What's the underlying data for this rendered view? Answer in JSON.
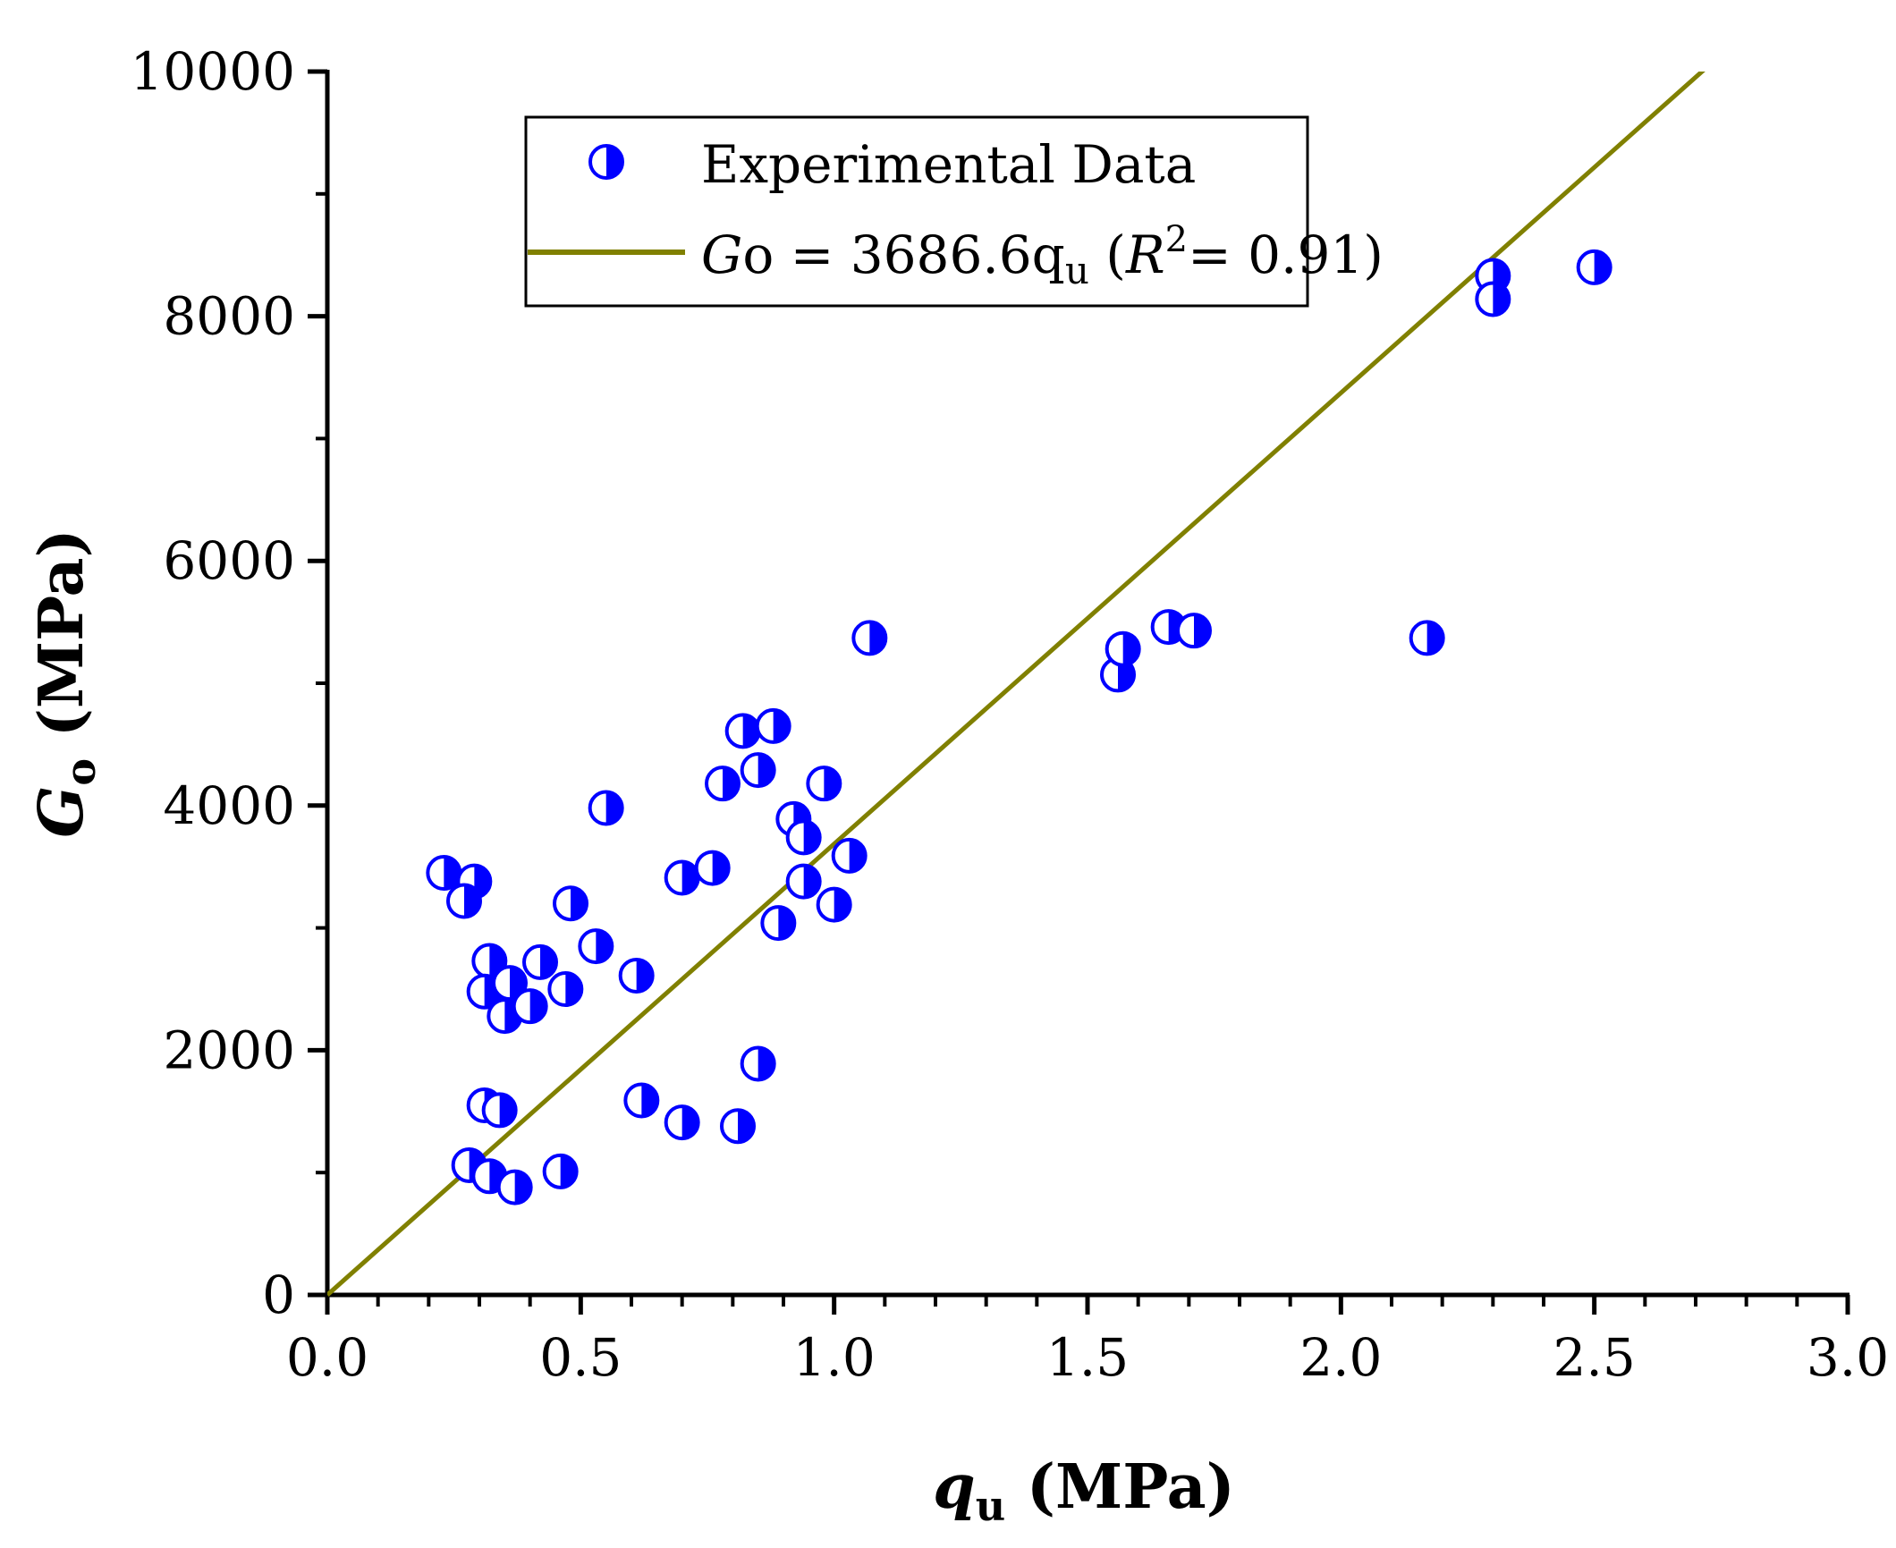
{
  "chart_data": {
    "type": "scatter",
    "title": "",
    "xlabel": {
      "main": "q",
      "sub": "u",
      "unit": "(MPa)"
    },
    "ylabel": {
      "main": "G",
      "sub": "o",
      "unit": "(MPa)"
    },
    "xlim": [
      0.0,
      3.0
    ],
    "ylim": [
      0,
      10000
    ],
    "x_ticks": [
      0.0,
      0.5,
      1.0,
      1.5,
      2.0,
      2.5,
      3.0
    ],
    "x_tick_labels": [
      "0.0",
      "0.5",
      "1.0",
      "1.5",
      "2.0",
      "2.5",
      "3.0"
    ],
    "y_ticks": [
      0,
      2000,
      4000,
      6000,
      8000,
      10000
    ],
    "y_tick_labels": [
      "0",
      "2000",
      "4000",
      "6000",
      "8000",
      "10000"
    ],
    "grid": false,
    "legend_position": "top-left",
    "series": [
      {
        "name": "Experimental Data",
        "kind": "scatter",
        "marker": "half-filled-circle",
        "color": "#0000ff",
        "points": [
          [
            0.23,
            3450
          ],
          [
            0.29,
            3380
          ],
          [
            0.27,
            3220
          ],
          [
            0.32,
            2730
          ],
          [
            0.31,
            2480
          ],
          [
            0.36,
            2550
          ],
          [
            0.35,
            2280
          ],
          [
            0.4,
            2360
          ],
          [
            0.42,
            2720
          ],
          [
            0.47,
            2500
          ],
          [
            0.48,
            3200
          ],
          [
            0.53,
            2850
          ],
          [
            0.55,
            3980
          ],
          [
            0.61,
            2610
          ],
          [
            0.62,
            1590
          ],
          [
            0.7,
            3410
          ],
          [
            0.7,
            1410
          ],
          [
            0.76,
            3490
          ],
          [
            0.78,
            4180
          ],
          [
            0.82,
            4610
          ],
          [
            0.85,
            4290
          ],
          [
            0.88,
            4650
          ],
          [
            0.89,
            3040
          ],
          [
            0.85,
            1890
          ],
          [
            0.81,
            1380
          ],
          [
            0.92,
            3890
          ],
          [
            0.94,
            3740
          ],
          [
            0.94,
            3380
          ],
          [
            0.98,
            4180
          ],
          [
            1.0,
            3190
          ],
          [
            1.03,
            3590
          ],
          [
            1.07,
            5370
          ],
          [
            0.31,
            1550
          ],
          [
            0.34,
            1510
          ],
          [
            0.28,
            1060
          ],
          [
            0.32,
            970
          ],
          [
            0.37,
            880
          ],
          [
            0.46,
            1010
          ],
          [
            1.56,
            5070
          ],
          [
            1.57,
            5280
          ],
          [
            1.66,
            5460
          ],
          [
            1.71,
            5430
          ],
          [
            2.17,
            5370
          ],
          [
            2.3,
            8330
          ],
          [
            2.3,
            8140
          ],
          [
            2.5,
            8400
          ]
        ]
      },
      {
        "name": "Go = 3686.6qu (R2= 0.91)",
        "kind": "line",
        "color": "#808000",
        "slope": 3686.6,
        "intercept": 0
      }
    ],
    "legend": {
      "scatter_label": "Experimental Data",
      "line_label": {
        "g": "G",
        "o": "o = 3686.6q",
        "u": "u",
        "open": " (",
        "r": "R",
        "sq": "2",
        "rest": "= 0.91)"
      }
    }
  }
}
